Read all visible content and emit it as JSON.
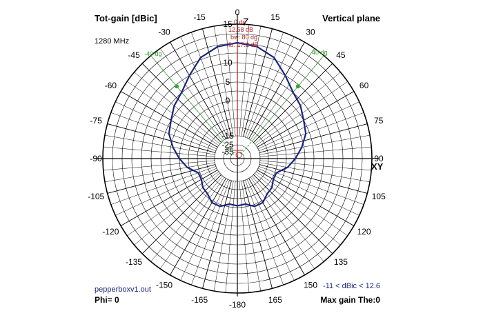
{
  "header": {
    "title_left": "Tot-gain [dBic]",
    "title_right": "Vertical plane",
    "frequency": "1280 MHz"
  },
  "footer": {
    "filename": "pepperboxv1.out",
    "phi": "Phi= 0",
    "range": "-11 < dBic < 12.6",
    "max_gain": "Max gain The:0"
  },
  "info": {
    "direction": "0 dg",
    "gain": "12.58 dB",
    "beamwidth": "bw: 80 dg",
    "front_back": "fb: 17.2 dB"
  },
  "axes": {
    "top_label": "Z",
    "right_label": "XY"
  },
  "markers": {
    "left": "-40 dg",
    "right": "40 dg"
  },
  "colors": {
    "pattern": "#1a237e",
    "beam_lines": "#2eaa2e",
    "info_text": "#b22222",
    "grid": "#000000",
    "footer_text": "#1a237e"
  },
  "chart_data": {
    "type": "polar",
    "angle_unit": "deg",
    "radial_unit": "dBic",
    "angle_ticks": [
      0,
      15,
      30,
      45,
      60,
      75,
      90,
      105,
      120,
      135,
      150,
      165,
      -180,
      -165,
      -150,
      -135,
      -120,
      -105,
      -90,
      -75,
      -60,
      -45,
      -30,
      -15
    ],
    "radial_ticks": [
      15,
      10,
      5,
      0,
      -15,
      -25,
      -35
    ],
    "beamwidth_markers_deg": [
      -40,
      40
    ],
    "series": [
      {
        "theta": [
          0,
          10,
          20,
          30,
          40,
          50,
          60,
          70,
          80,
          90,
          100,
          110,
          120,
          130,
          140,
          150,
          160,
          170,
          180
        ],
        "gain": [
          12.6,
          12.3,
          11.5,
          10.0,
          7.6,
          6.5,
          5.0,
          4.0,
          2.0,
          0,
          -3.0,
          -7.0,
          -7.0,
          -5.5,
          -5.0,
          -3.0,
          -3.0,
          -5.0,
          -4.6
        ]
      }
    ]
  }
}
